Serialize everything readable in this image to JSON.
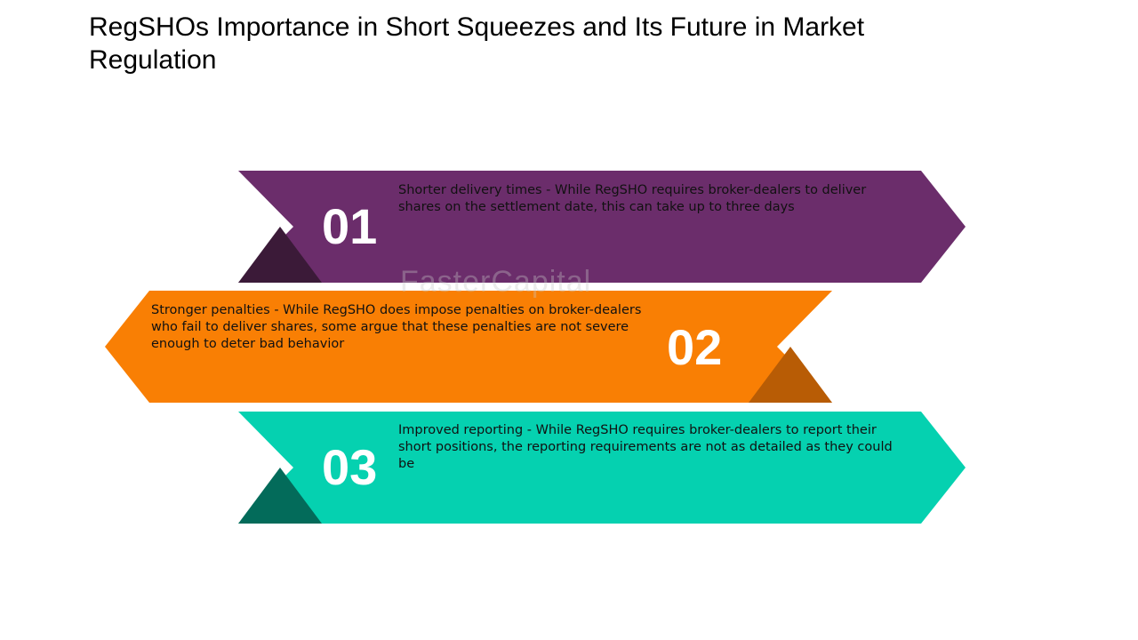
{
  "title": "RegSHOs Importance in Short Squeezes and Its Future in Market Regulation",
  "watermark": "FasterCapital",
  "colors": {
    "step1": "#6b2d6b",
    "step1_fold": "#3b1a38",
    "step2": "#f97f04",
    "step2_fold": "#b85c05",
    "step3": "#05d1b0",
    "step3_fold": "#036b5a"
  },
  "steps": [
    {
      "number": "01",
      "text": "Shorter delivery times - While RegSHO requires broker-dealers to deliver shares on the settlement date, this can take up to three days"
    },
    {
      "number": "02",
      "text": "Stronger penalties - While RegSHO does impose penalties on broker-dealers who fail to deliver shares, some argue that these penalties are not severe enough to deter bad behavior"
    },
    {
      "number": "03",
      "text": "Improved reporting - While RegSHO requires broker-dealers to report their short positions, the reporting requirements are not as detailed as they could be"
    }
  ]
}
